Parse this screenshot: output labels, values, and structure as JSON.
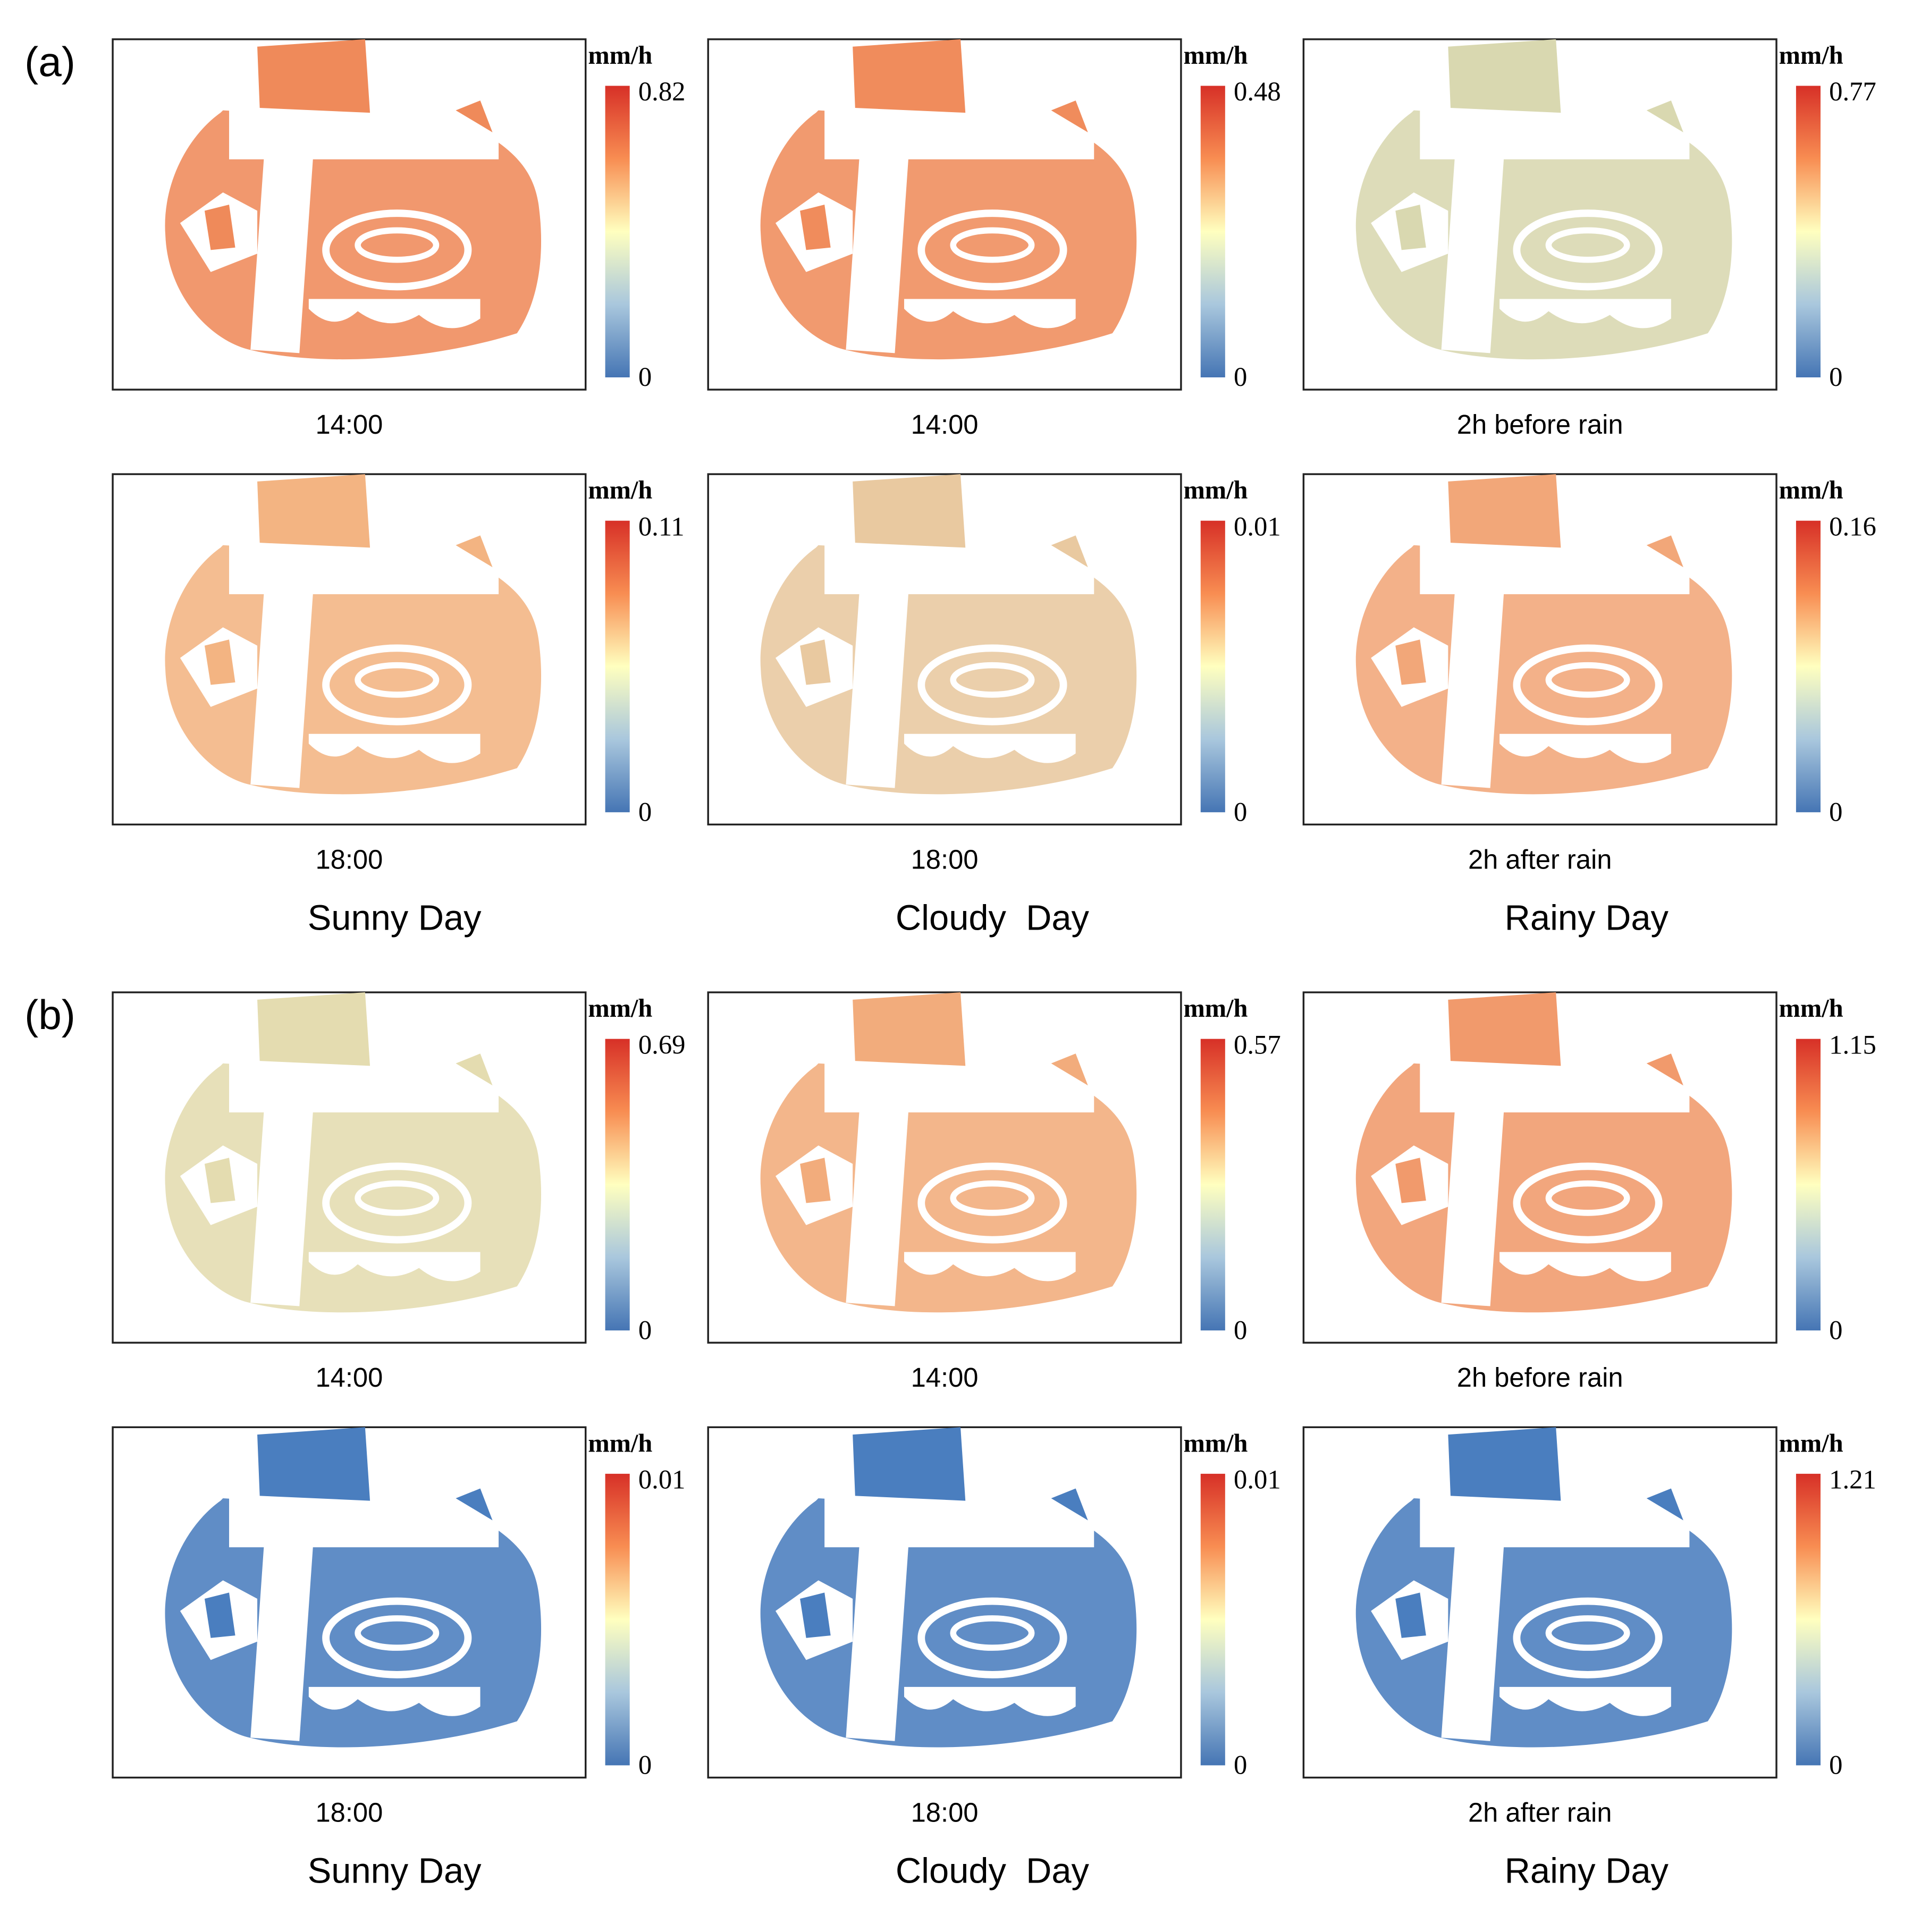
{
  "groups": [
    {
      "label": "(a)",
      "days": [
        "Sunny Day",
        "Cloudy  Day",
        "Rainy Day"
      ],
      "rows": [
        {
          "maps": [
            {
              "time": "14:00",
              "unit": "mm/h",
              "max": 0.82,
              "min": 0,
              "tone": "#ef8a5a"
            },
            {
              "time": "14:00",
              "unit": "mm/h",
              "max": 0.48,
              "min": 0,
              "tone": "#f08c5c"
            },
            {
              "time": "2h before rain",
              "unit": "mm/h",
              "max": 0.77,
              "min": 0,
              "tone": "#d9d8b0"
            }
          ]
        },
        {
          "maps": [
            {
              "time": "18:00",
              "unit": "mm/h",
              "max": 0.11,
              "min": 0,
              "tone": "#f3b482"
            },
            {
              "time": "18:00",
              "unit": "mm/h",
              "max": 0.01,
              "min": 0,
              "tone": "#e9c9a0"
            },
            {
              "time": "2h after rain",
              "unit": "mm/h",
              "max": 0.16,
              "min": 0,
              "tone": "#f2a779"
            }
          ]
        }
      ]
    },
    {
      "label": "(b)",
      "days": [
        "Sunny Day",
        "Cloudy  Day",
        "Rainy Day"
      ],
      "rows": [
        {
          "maps": [
            {
              "time": "14:00",
              "unit": "mm/h",
              "max": 0.69,
              "min": 0,
              "tone": "#e4dcb0"
            },
            {
              "time": "14:00",
              "unit": "mm/h",
              "max": 0.57,
              "min": 0,
              "tone": "#f2ac7c"
            },
            {
              "time": "2h before rain",
              "unit": "mm/h",
              "max": 1.15,
              "min": 0,
              "tone": "#f19a6c"
            }
          ]
        },
        {
          "maps": [
            {
              "time": "18:00",
              "unit": "mm/h",
              "max": 0.01,
              "min": 0,
              "tone": "#4a7ebf"
            },
            {
              "time": "18:00",
              "unit": "mm/h",
              "max": 0.01,
              "min": 0,
              "tone": "#4a7ebf"
            },
            {
              "time": "2h after rain",
              "unit": "mm/h",
              "max": 1.21,
              "min": 0,
              "tone": "#4a7ebf"
            }
          ]
        }
      ]
    }
  ]
}
